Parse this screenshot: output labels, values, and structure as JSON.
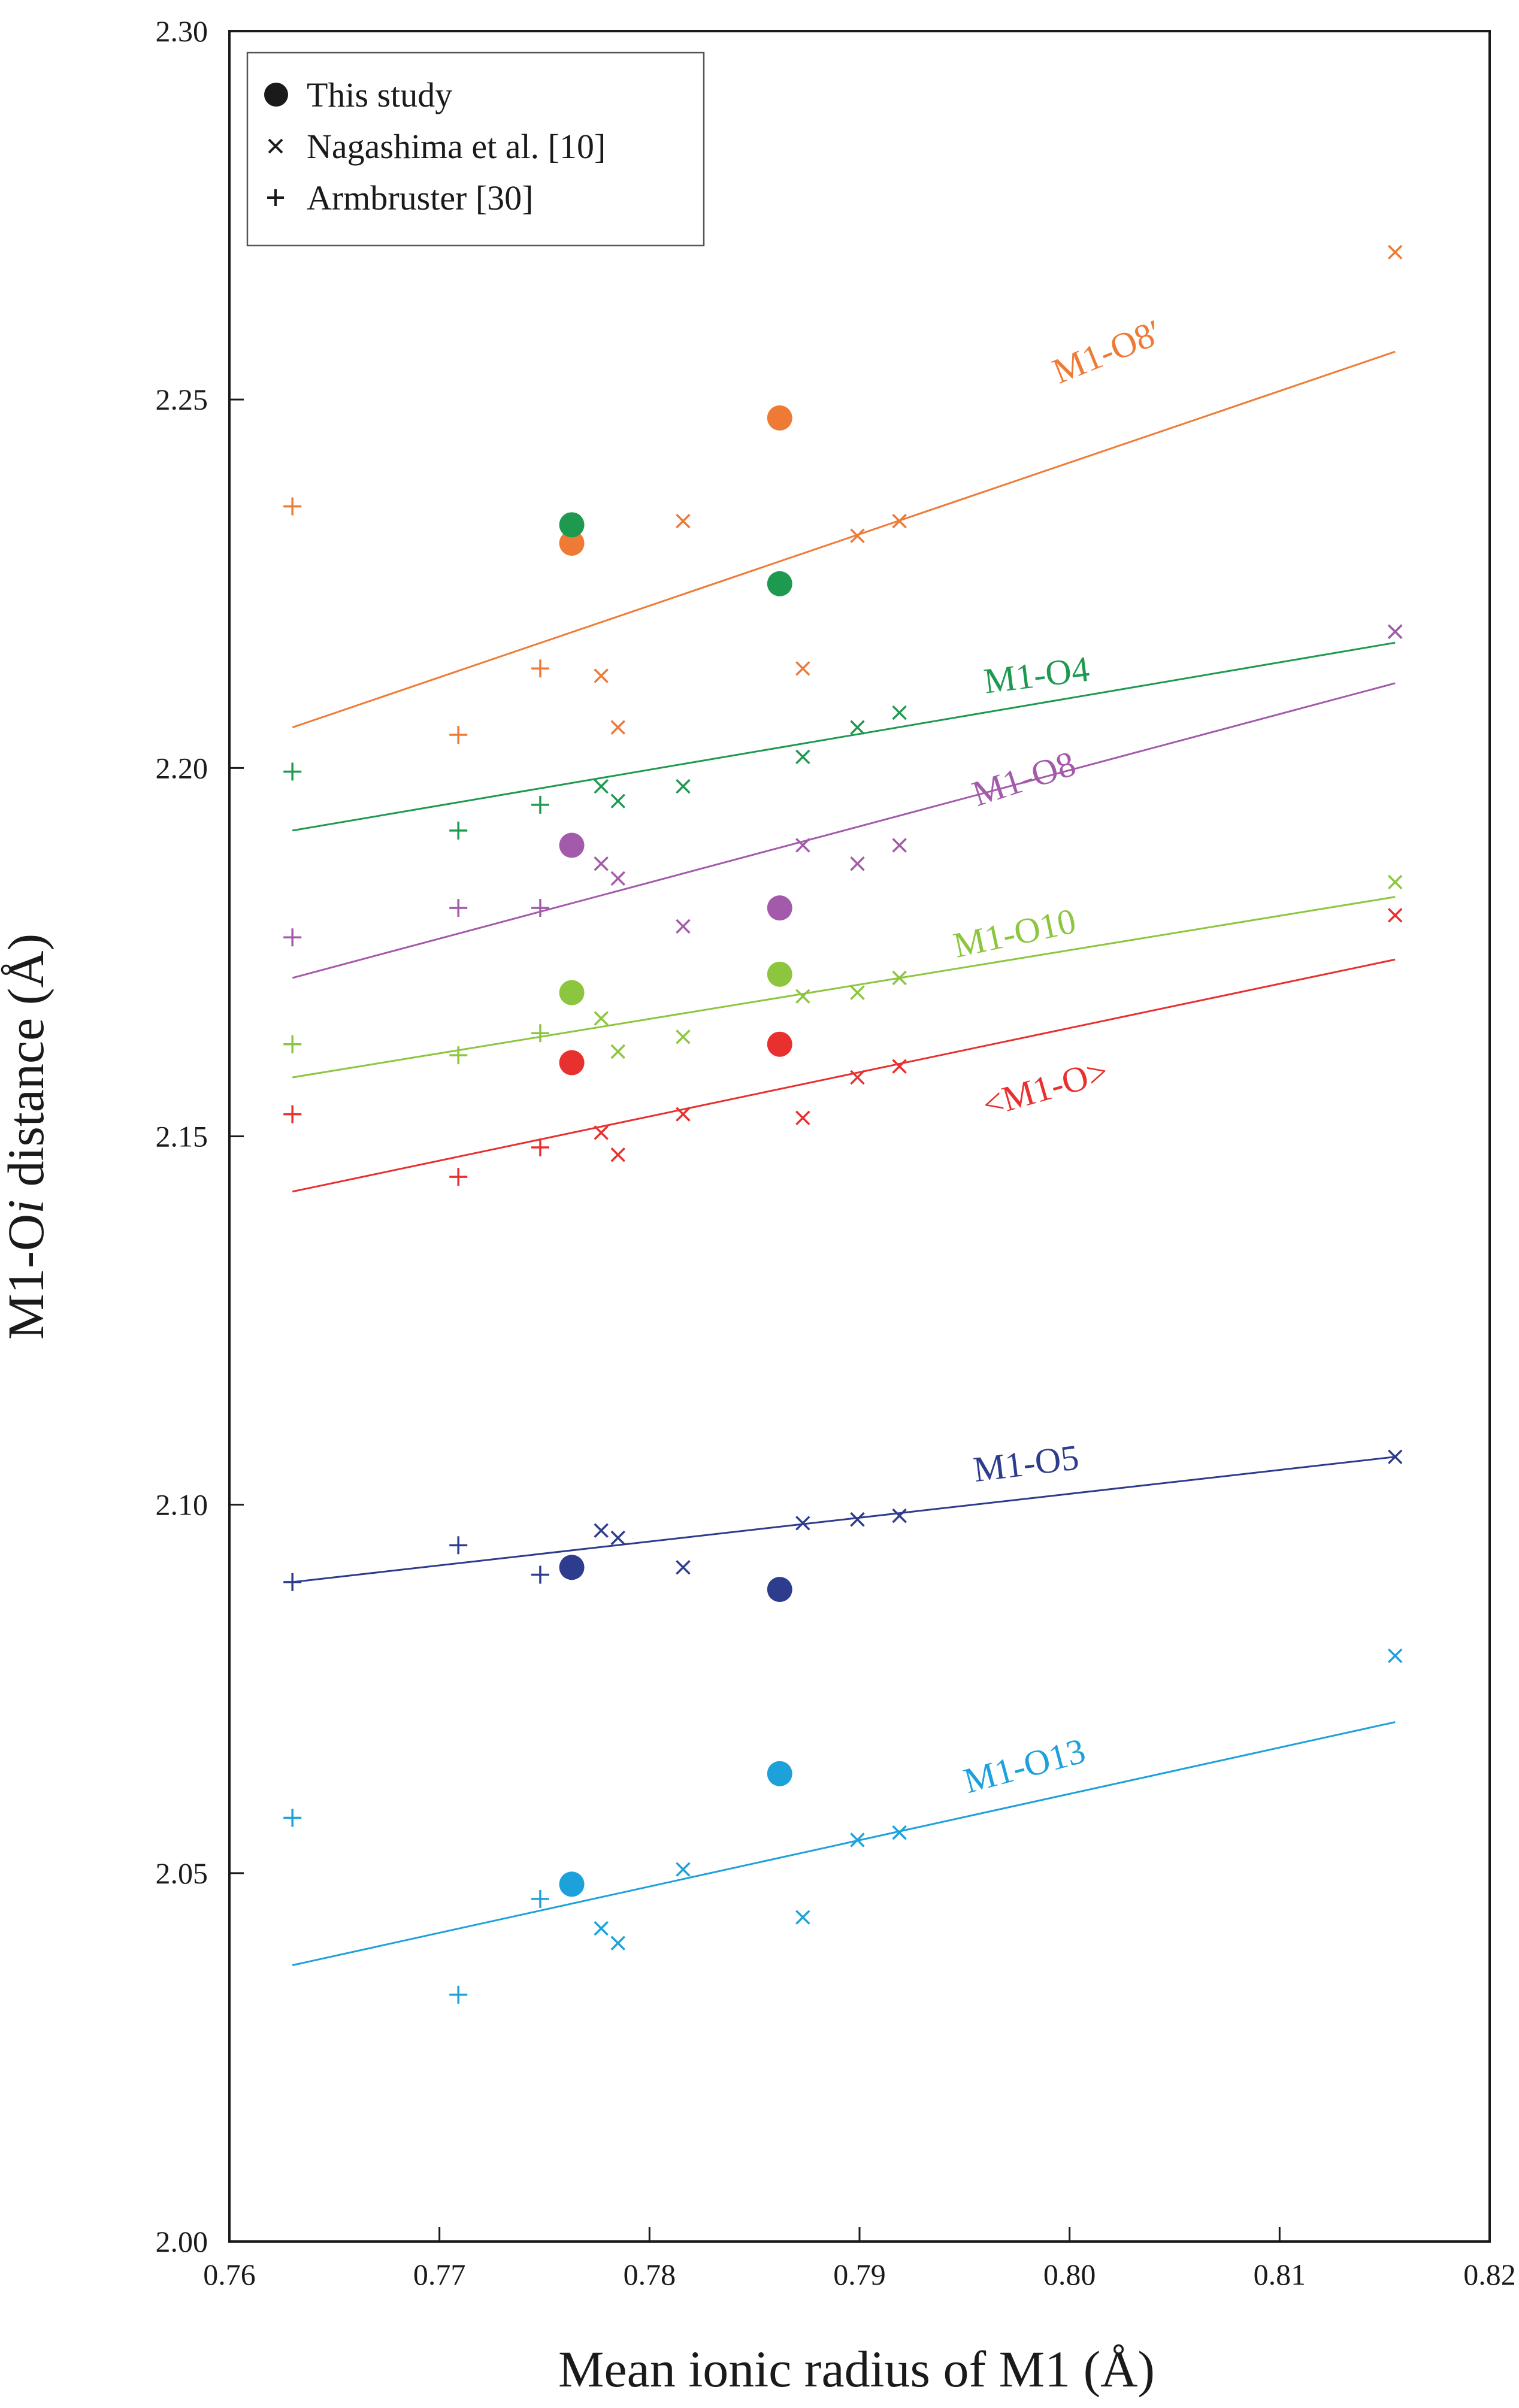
{
  "chart_data": {
    "type": "scatter",
    "xlabel": "Mean ionic radius of M1 (Å)",
    "ylabel_prefix": "M1-O",
    "ylabel_italic": "i",
    "ylabel_suffix": " distance (Å)",
    "xlim": [
      0.76,
      0.82
    ],
    "ylim": [
      2.0,
      2.3
    ],
    "xticks": [
      0.76,
      0.77,
      0.78,
      0.79,
      0.8,
      0.81,
      0.82
    ],
    "yticks": [
      2.0,
      2.05,
      2.1,
      2.15,
      2.2,
      2.25,
      2.3
    ],
    "xtick_labels": [
      "0.76",
      "0.77",
      "0.78",
      "0.79",
      "0.80",
      "0.81",
      "0.82"
    ],
    "ytick_labels": [
      "2.00",
      "2.05",
      "2.10",
      "2.15",
      "2.20",
      "2.25",
      "2.30"
    ],
    "grid": false,
    "legend_position": "top-left",
    "legend": [
      {
        "marker": "circle",
        "label": "This study"
      },
      {
        "marker": "x",
        "label": "Nagashima et al. [10]"
      },
      {
        "marker": "plus",
        "label": "Armbruster [30]"
      }
    ],
    "series": [
      {
        "name": "M1-O8′",
        "color": "#EE7A36",
        "trend": [
          [
            0.763,
            2.2055
          ],
          [
            0.8155,
            2.2565
          ]
        ],
        "this_study": [
          [
            0.7763,
            2.2305
          ],
          [
            0.7862,
            2.2475
          ]
        ],
        "nagashima": [
          [
            0.7777,
            2.2125
          ],
          [
            0.7785,
            2.2055
          ],
          [
            0.7816,
            2.2335
          ],
          [
            0.7873,
            2.2135
          ],
          [
            0.7899,
            2.2315
          ],
          [
            0.7919,
            2.2335
          ],
          [
            0.8155,
            2.27
          ]
        ],
        "armbruster": [
          [
            0.763,
            2.2355
          ],
          [
            0.7709,
            2.2045
          ],
          [
            0.7748,
            2.2135
          ]
        ]
      },
      {
        "name": "M1-O4",
        "color": "#1E9950",
        "trend": [
          [
            0.763,
            2.1915
          ],
          [
            0.8155,
            2.217
          ]
        ],
        "this_study": [
          [
            0.7763,
            2.233
          ],
          [
            0.7862,
            2.225
          ]
        ],
        "nagashima": [
          [
            0.7777,
            2.1975
          ],
          [
            0.7785,
            2.1955
          ],
          [
            0.7816,
            2.1975
          ],
          [
            0.7873,
            2.2015
          ],
          [
            0.7899,
            2.2055
          ],
          [
            0.7919,
            2.2075
          ],
          [
            0.8155,
            2.2185
          ]
        ],
        "armbruster": [
          [
            0.763,
            2.1995
          ],
          [
            0.7709,
            2.1915
          ],
          [
            0.7748,
            2.195
          ]
        ]
      },
      {
        "name": "M1-O8",
        "color": "#A45AAA",
        "trend": [
          [
            0.763,
            2.1715
          ],
          [
            0.8155,
            2.2115
          ]
        ],
        "this_study": [
          [
            0.7763,
            2.1895
          ],
          [
            0.7862,
            2.181
          ]
        ],
        "nagashima": [
          [
            0.7777,
            2.187
          ],
          [
            0.7785,
            2.185
          ],
          [
            0.7816,
            2.1785
          ],
          [
            0.7873,
            2.1895
          ],
          [
            0.7899,
            2.187
          ],
          [
            0.7919,
            2.1895
          ],
          [
            0.8155,
            2.2185
          ]
        ],
        "armbruster": [
          [
            0.763,
            2.177
          ],
          [
            0.7709,
            2.181
          ],
          [
            0.7748,
            2.181
          ]
        ]
      },
      {
        "name": "M1-O10",
        "color": "#8CC63F",
        "trend": [
          [
            0.763,
            2.158
          ],
          [
            0.8155,
            2.1825
          ]
        ],
        "this_study": [
          [
            0.7763,
            2.1695
          ],
          [
            0.7862,
            2.172
          ]
        ],
        "nagashima": [
          [
            0.7777,
            2.166
          ],
          [
            0.7785,
            2.1615
          ],
          [
            0.7816,
            2.1635
          ],
          [
            0.7873,
            2.169
          ],
          [
            0.7899,
            2.1695
          ],
          [
            0.7919,
            2.1715
          ],
          [
            0.8155,
            2.1845
          ]
        ],
        "armbruster": [
          [
            0.763,
            2.1625
          ],
          [
            0.7709,
            2.161
          ],
          [
            0.7748,
            2.164
          ]
        ]
      },
      {
        "name": "<M1-O>",
        "color": "#E8302E",
        "trend": [
          [
            0.763,
            2.1425
          ],
          [
            0.8155,
            2.174
          ]
        ],
        "this_study": [
          [
            0.7763,
            2.16
          ],
          [
            0.7862,
            2.1625
          ]
        ],
        "nagashima": [
          [
            0.7777,
            2.1505
          ],
          [
            0.7785,
            2.1475
          ],
          [
            0.7816,
            2.153
          ],
          [
            0.7873,
            2.1525
          ],
          [
            0.7899,
            2.158
          ],
          [
            0.7919,
            2.1595
          ],
          [
            0.8155,
            2.18
          ]
        ],
        "armbruster": [
          [
            0.763,
            2.153
          ],
          [
            0.7709,
            2.1445
          ],
          [
            0.7748,
            2.1485
          ]
        ]
      },
      {
        "name": "M1-O5",
        "color": "#2E3C8E",
        "trend": [
          [
            0.763,
            2.0895
          ],
          [
            0.8155,
            2.1065
          ]
        ],
        "this_study": [
          [
            0.7763,
            2.0915
          ],
          [
            0.7862,
            2.0885
          ]
        ],
        "nagashima": [
          [
            0.7777,
            2.0965
          ],
          [
            0.7785,
            2.0955
          ],
          [
            0.7816,
            2.0915
          ],
          [
            0.7873,
            2.0975
          ],
          [
            0.7899,
            2.098
          ],
          [
            0.7919,
            2.0985
          ],
          [
            0.8155,
            2.1065
          ]
        ],
        "armbruster": [
          [
            0.763,
            2.0895
          ],
          [
            0.7709,
            2.0945
          ],
          [
            0.7748,
            2.0905
          ]
        ]
      },
      {
        "name": "M1-O13",
        "color": "#1DA1DB",
        "trend": [
          [
            0.763,
            2.0375
          ],
          [
            0.8155,
            2.0705
          ]
        ],
        "this_study": [
          [
            0.7763,
            2.0485
          ],
          [
            0.7862,
            2.0635
          ]
        ],
        "nagashima": [
          [
            0.7777,
            2.0425
          ],
          [
            0.7785,
            2.0405
          ],
          [
            0.7816,
            2.0505
          ],
          [
            0.7873,
            2.044
          ],
          [
            0.7899,
            2.0545
          ],
          [
            0.7919,
            2.0555
          ],
          [
            0.8155,
            2.0795
          ]
        ],
        "armbruster": [
          [
            0.763,
            2.0575
          ],
          [
            0.7709,
            2.0335
          ],
          [
            0.7748,
            2.0465
          ]
        ]
      }
    ]
  }
}
